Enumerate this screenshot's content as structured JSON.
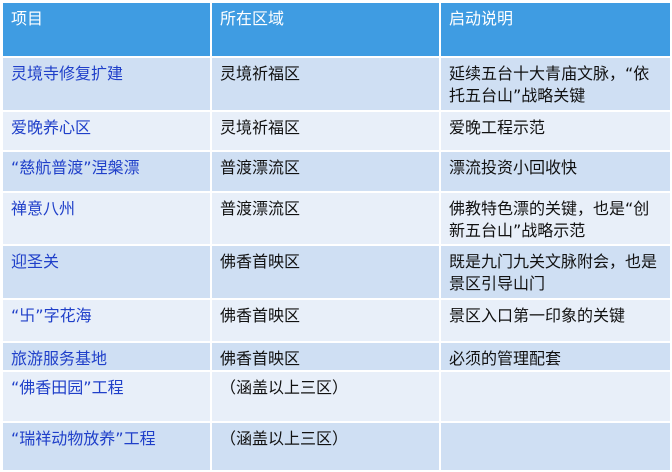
{
  "header": {
    "col1": "项目",
    "col2": "所在区域",
    "col3": "启动说明"
  },
  "colors": {
    "header_bg": "#3f9ce2",
    "row_odd": "#cfdff3",
    "row_even": "#e8eff9",
    "project_text": "#1f3fc9"
  },
  "rows": [
    {
      "project": "灵境寺修复扩建",
      "area": "灵境祈福区",
      "note": "延续五台十大青庙文脉，“依托五台山”战略关键",
      "h": 52
    },
    {
      "project": "爱晚养心区",
      "area": "灵境祈福区",
      "note": "爱晚工程示范",
      "h": 38
    },
    {
      "project": "“慈航普渡”涅槃漂",
      "area": "普渡漂流区",
      "note": "漂流投资小回收快",
      "h": 39
    },
    {
      "project": "禅意八州",
      "area": "普渡漂流区",
      "note": "佛教特色漂的关键，也是“创新五台山”战略示范",
      "h": 51
    },
    {
      "project": "迎圣关",
      "area": "佛香首映区",
      "note": "既是九门九关文脉附会，也是景区引导山门",
      "h": 52
    },
    {
      "project": "“卐”字花海",
      "area": "佛香首映区",
      "note": "景区入口第一印象的关键",
      "h": 41
    },
    {
      "project": "旅游服务基地",
      "area": "佛香首映区",
      "note": "必须的管理配套",
      "h": 27
    },
    {
      "project": "“佛香田园”工程",
      "area": "（涵盖以上三区）",
      "note": "",
      "h": 49
    },
    {
      "project": "“瑞祥动物放养”工程",
      "area": "（涵盖以上三区）",
      "note": "",
      "h": 47
    }
  ]
}
